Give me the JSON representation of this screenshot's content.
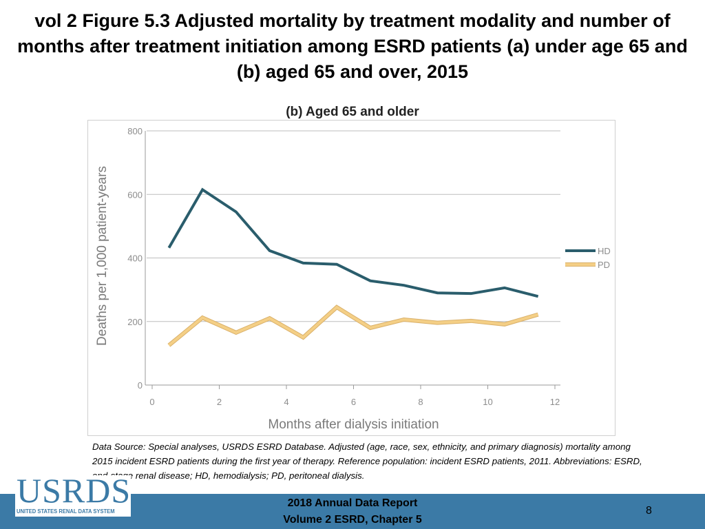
{
  "slide": {
    "title": "vol 2 Figure 5.3 Adjusted mortality by treatment modality and number of months after treatment initiation among ESRD patients (a) under age 65 and (b) aged 65 and over, 2015"
  },
  "notes": {
    "text": "Data Source: Special analyses, USRDS ESRD Database. Adjusted (age, race, sex, ethnicity, and primary diagnosis) mortality among 2015 incident ESRD patients during the first year of therapy. Reference population: incident ESRD patients, 2011. Abbreviations: ESRD, end-stage renal disease; HD, hemodialysis; PD, peritoneal dialysis."
  },
  "footer": {
    "line1": "2018 Annual Data Report",
    "line2": "Volume 2 ESRD, Chapter 5",
    "page_number": "8"
  },
  "logo": {
    "word": "USRDS",
    "subtitle": "UNITED STATES RENAL DATA SYSTEM"
  },
  "colors": {
    "hd": "#2a5d6c",
    "pd": "#f4cf86",
    "grid": "#bdbdbd",
    "axis_text": "#8c8c8c",
    "footer": "#3b7aa6"
  },
  "chart_data": {
    "type": "line",
    "title": "(b) Aged 65 and older",
    "xlabel": "Months after dialysis initiation",
    "ylabel": "Deaths per 1,000 patient-years",
    "xlim": [
      0,
      12
    ],
    "ylim": [
      0,
      800
    ],
    "xticks": [
      0,
      2,
      4,
      6,
      8,
      10,
      12
    ],
    "yticks": [
      0,
      200,
      400,
      600,
      800
    ],
    "legend_position": "right",
    "series": [
      {
        "name": "HD",
        "x": [
          0.5,
          1.5,
          2.5,
          3.5,
          4.5,
          5.5,
          6.5,
          7.5,
          8.5,
          9.5,
          10.5,
          11.5
        ],
        "values": [
          432,
          615,
          545,
          423,
          384,
          380,
          328,
          314,
          290,
          288,
          306,
          279
        ]
      },
      {
        "name": "PD",
        "x": [
          0.5,
          1.5,
          2.5,
          3.5,
          4.5,
          5.5,
          6.5,
          7.5,
          8.5,
          9.5,
          10.5,
          11.5
        ],
        "values": [
          125,
          212,
          165,
          210,
          150,
          245,
          180,
          206,
          196,
          202,
          191,
          222
        ]
      }
    ]
  }
}
